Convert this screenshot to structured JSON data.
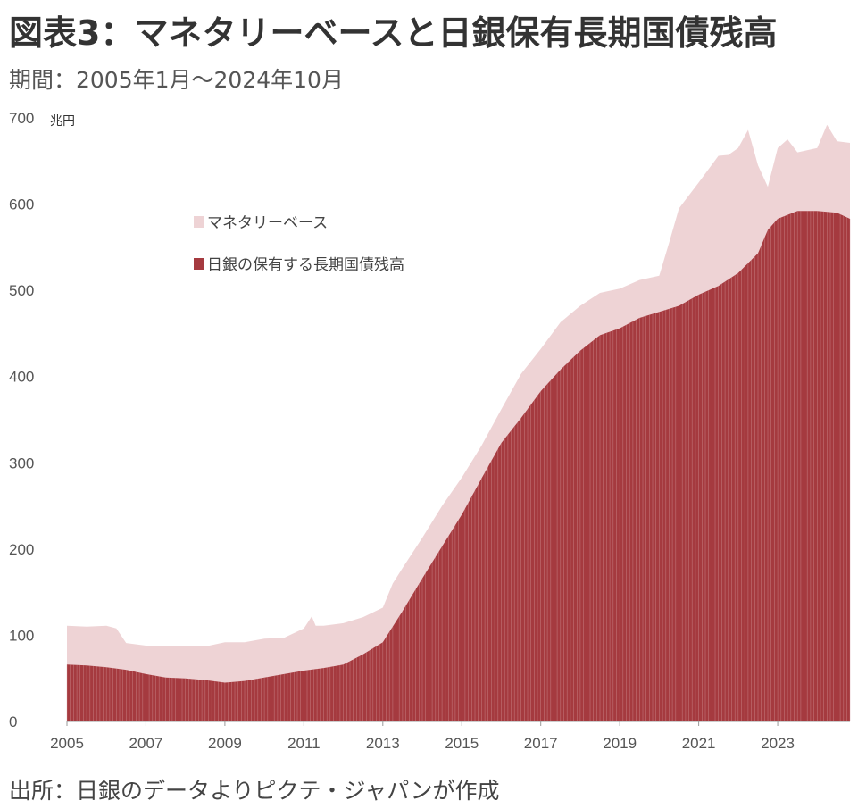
{
  "header": {
    "title": "図表3：マネタリーベースと日銀保有長期国債残高",
    "subtitle": "期間：2005年1月～2024年10月"
  },
  "footer": {
    "source": "出所：日銀のデータよりピクテ・ジャパンが作成"
  },
  "colors": {
    "monetary_base": "#eed3d5",
    "jgb": "#a53a3f",
    "jgb_stripe": "#d9a3a6",
    "axis": "#999999"
  },
  "chart_data": {
    "type": "area",
    "unit": "兆円",
    "ylim": [
      0,
      700
    ],
    "yticks": [
      "0",
      "100",
      "200",
      "300",
      "400",
      "500",
      "600",
      "700"
    ],
    "xlim": [
      2005.0,
      2024.83
    ],
    "xticks": [
      "2005",
      "2007",
      "2009",
      "2011",
      "2013",
      "2015",
      "2017",
      "2019",
      "2021",
      "2023"
    ],
    "legend_position": "upper-left",
    "series": [
      {
        "name": "マネタリーベース",
        "x": [
          2005.0,
          2005.5,
          2006.0,
          2006.25,
          2006.5,
          2007.0,
          2007.5,
          2008.0,
          2008.5,
          2009.0,
          2009.5,
          2010.0,
          2010.5,
          2011.0,
          2011.2,
          2011.3,
          2011.5,
          2012.0,
          2012.5,
          2013.0,
          2013.25,
          2013.5,
          2014.0,
          2014.5,
          2015.0,
          2015.5,
          2016.0,
          2016.5,
          2017.0,
          2017.5,
          2018.0,
          2018.5,
          2019.0,
          2019.5,
          2020.0,
          2020.25,
          2020.5,
          2021.0,
          2021.5,
          2021.75,
          2022.0,
          2022.25,
          2022.5,
          2022.75,
          2023.0,
          2023.25,
          2023.5,
          2024.0,
          2024.25,
          2024.5,
          2024.83
        ],
        "values": [
          111,
          110,
          111,
          108,
          91,
          88,
          88,
          88,
          87,
          92,
          92,
          96,
          97,
          108,
          122,
          111,
          111,
          114,
          121,
          132,
          160,
          178,
          213,
          250,
          283,
          320,
          362,
          403,
          432,
          463,
          482,
          497,
          502,
          512,
          517,
          555,
          595,
          625,
          656,
          657,
          665,
          686,
          645,
          620,
          665,
          675,
          660,
          665,
          692,
          673,
          671
        ]
      },
      {
        "name": "日銀の保有する長期国債残高",
        "x": [
          2005.0,
          2005.5,
          2006.0,
          2006.5,
          2007.0,
          2007.5,
          2008.0,
          2008.5,
          2009.0,
          2009.5,
          2010.0,
          2010.5,
          2011.0,
          2011.5,
          2012.0,
          2012.5,
          2013.0,
          2013.5,
          2014.0,
          2014.5,
          2015.0,
          2015.5,
          2016.0,
          2016.5,
          2017.0,
          2017.5,
          2018.0,
          2018.5,
          2019.0,
          2019.5,
          2020.0,
          2020.5,
          2021.0,
          2021.5,
          2022.0,
          2022.5,
          2022.75,
          2023.0,
          2023.5,
          2024.0,
          2024.5,
          2024.83
        ],
        "values": [
          66,
          65,
          63,
          60,
          55,
          51,
          50,
          48,
          45,
          47,
          51,
          55,
          59,
          62,
          66,
          78,
          92,
          128,
          166,
          203,
          240,
          282,
          323,
          352,
          383,
          408,
          430,
          448,
          456,
          468,
          475,
          482,
          495,
          505,
          520,
          543,
          570,
          583,
          592,
          592,
          590,
          583
        ]
      }
    ]
  }
}
